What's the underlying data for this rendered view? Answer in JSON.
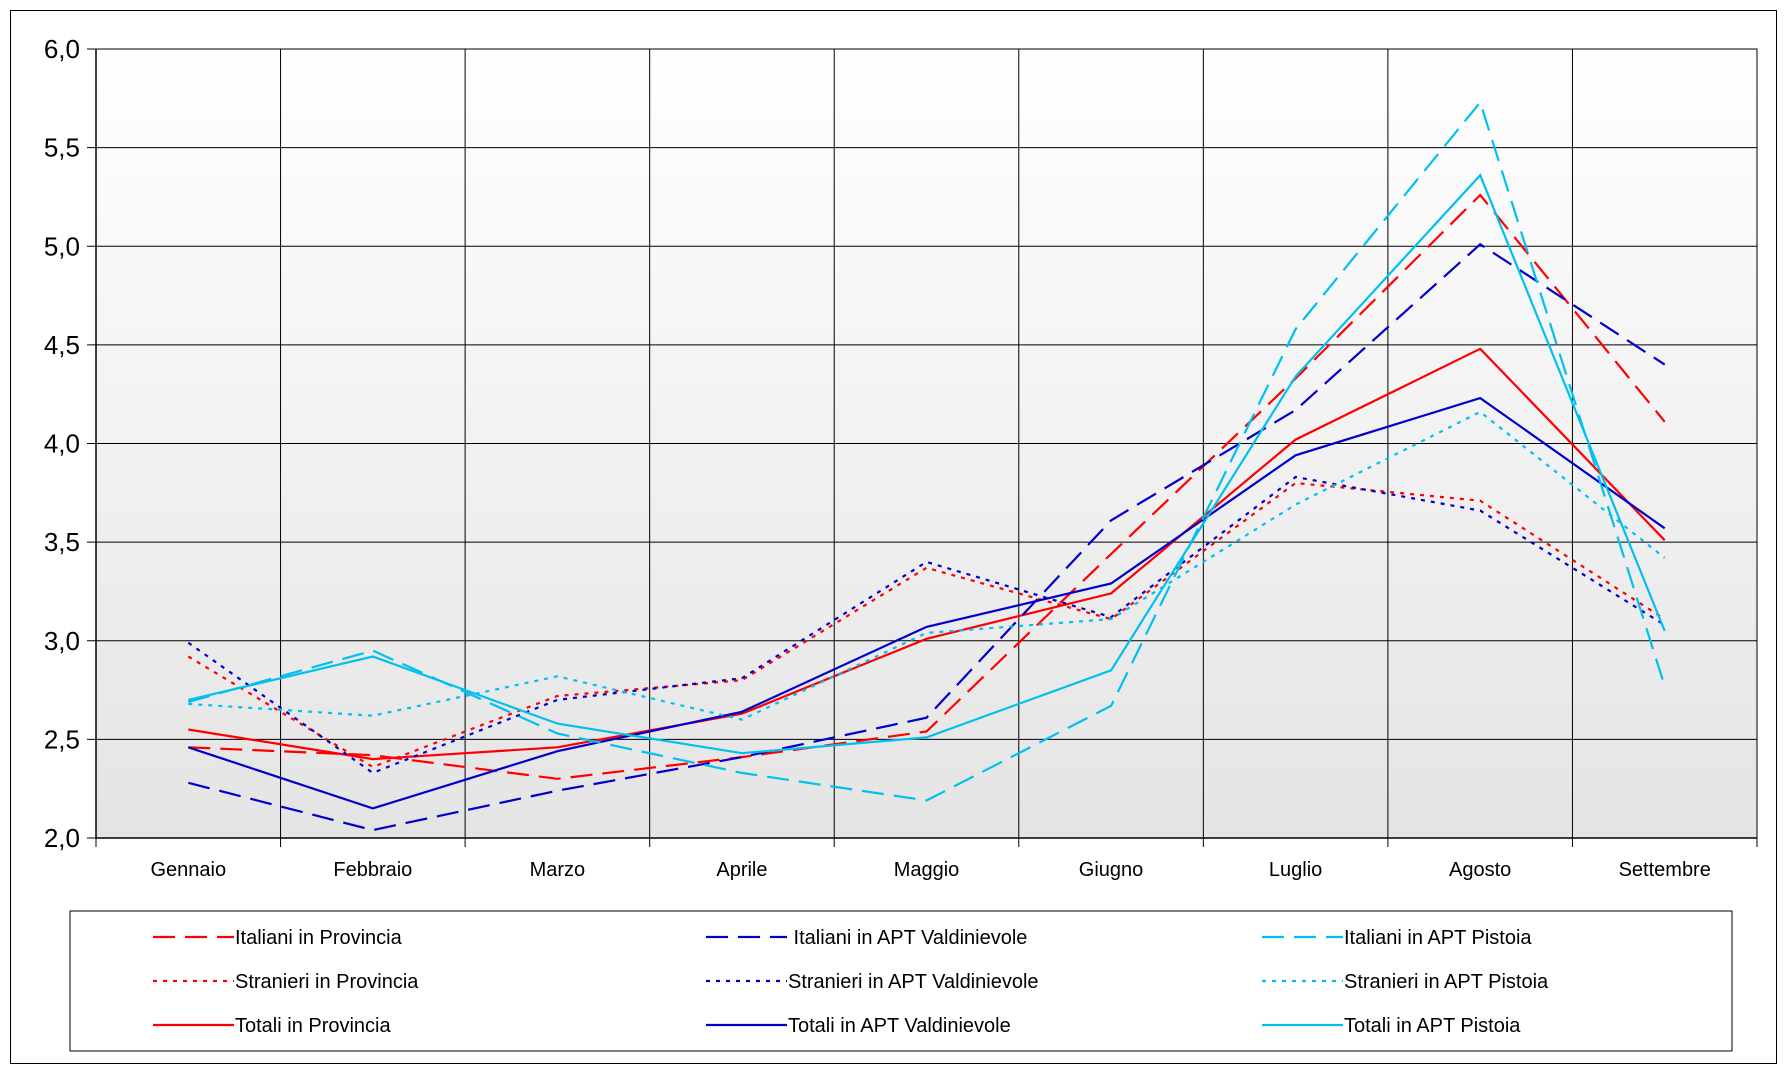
{
  "chart_data": {
    "type": "line",
    "title": "",
    "xlabel": "",
    "ylabel": "",
    "categories": [
      "Gennaio",
      "Febbraio",
      "Marzo",
      "Aprile",
      "Maggio",
      "Giugno",
      "Luglio",
      "Agosto",
      "Settembre"
    ],
    "ylim": [
      2.0,
      6.0
    ],
    "yticks": [
      "2,0",
      "2,5",
      "3,0",
      "3,5",
      "4,0",
      "4,5",
      "5,0",
      "5,5",
      "6,0"
    ],
    "grid": true,
    "legend_position": "bottom",
    "series": [
      {
        "name": "Italiani in Provincia",
        "color": "#ff0000",
        "dash": "dashed",
        "values": [
          2.46,
          2.42,
          2.3,
          2.41,
          2.54,
          3.44,
          4.33,
          5.26,
          4.11
        ]
      },
      {
        "name": "Stranieri in Provincia",
        "color": "#ff0000",
        "dash": "dotted",
        "values": [
          2.92,
          2.36,
          2.72,
          2.8,
          3.37,
          3.11,
          3.8,
          3.71,
          3.11
        ]
      },
      {
        "name": "Totali in Provincia",
        "color": "#ff0000",
        "dash": "solid",
        "values": [
          2.55,
          2.4,
          2.46,
          2.63,
          3.01,
          3.24,
          4.02,
          4.48,
          3.51
        ]
      },
      {
        "name": " Italiani in APT Valdinievole",
        "color": "#0000cc",
        "dash": "dashed",
        "values": [
          2.28,
          2.04,
          2.24,
          2.41,
          2.61,
          3.61,
          4.17,
          5.01,
          4.4
        ]
      },
      {
        "name": "Stranieri in APT Valdinievole",
        "color": "#0000cc",
        "dash": "dotted",
        "values": [
          2.99,
          2.33,
          2.7,
          2.81,
          3.4,
          3.12,
          3.83,
          3.66,
          3.08
        ]
      },
      {
        "name": "Totali in APT Valdinievole",
        "color": "#0000cc",
        "dash": "solid",
        "values": [
          2.46,
          2.15,
          2.44,
          2.64,
          3.07,
          3.29,
          3.94,
          4.23,
          3.57
        ]
      },
      {
        "name": "Italiani in APT Pistoia",
        "color": "#00c0f0",
        "dash": "dashed",
        "values": [
          2.69,
          2.95,
          2.53,
          2.33,
          2.19,
          2.67,
          4.58,
          5.73,
          2.77
        ]
      },
      {
        "name": "Stranieri in APT Pistoia",
        "color": "#00c0f0",
        "dash": "dotted",
        "values": [
          2.68,
          2.62,
          2.82,
          2.6,
          3.04,
          3.11,
          3.69,
          4.16,
          3.42
        ]
      },
      {
        "name": "Totali in APT Pistoia",
        "color": "#00c0f0",
        "dash": "solid",
        "values": [
          2.7,
          2.92,
          2.58,
          2.43,
          2.51,
          2.85,
          4.34,
          5.36,
          3.05
        ]
      }
    ]
  }
}
